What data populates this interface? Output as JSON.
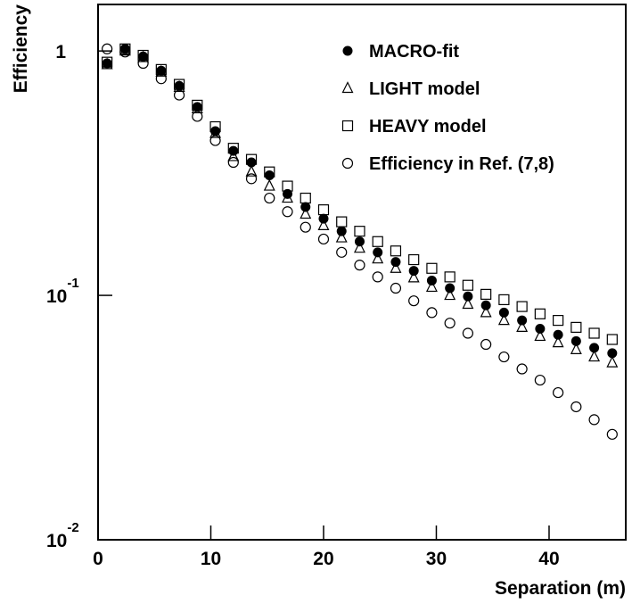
{
  "chart_data": {
    "type": "scatter",
    "log_y": true,
    "x_label": "Separation (m)",
    "y_label": "Efficiency",
    "xlim": [
      0,
      46.8
    ],
    "xticks": [
      0,
      10,
      20,
      30,
      40
    ],
    "ylim": [
      0.01,
      1.55
    ],
    "yticks": [
      {
        "value": 0.01,
        "label": "10",
        "exponent": "-2"
      },
      {
        "value": 0.1,
        "label": "10",
        "exponent": "-1"
      },
      1
    ],
    "x": [
      0.8,
      2.4,
      4.0,
      5.6,
      7.2,
      8.8,
      10.4,
      12.0,
      13.6,
      15.2,
      16.8,
      18.4,
      20.0,
      21.6,
      23.2,
      24.8,
      26.4,
      28.0,
      29.6,
      31.2,
      32.8,
      34.4,
      36.0,
      37.6,
      39.2,
      40.8,
      42.4,
      44.0,
      45.6
    ],
    "series": [
      {
        "name": "MACRO-fit",
        "color": "#000000",
        "marker": "filled-circle",
        "values": [
          0.89,
          1.02,
          0.95,
          0.83,
          0.72,
          0.59,
          0.47,
          0.39,
          0.35,
          0.31,
          0.26,
          0.23,
          0.206,
          0.183,
          0.166,
          0.15,
          0.137,
          0.126,
          0.115,
          0.107,
          0.099,
          0.091,
          0.085,
          0.079,
          0.073,
          0.069,
          0.065,
          0.061,
          0.058
        ]
      },
      {
        "name": "LIGHT model",
        "color": "#000000",
        "marker": "triangle",
        "values": [
          0.88,
          1.0,
          0.94,
          0.82,
          0.71,
          0.58,
          0.46,
          0.37,
          0.32,
          0.28,
          0.25,
          0.215,
          0.193,
          0.172,
          0.156,
          0.141,
          0.129,
          0.118,
          0.108,
          0.1,
          0.092,
          0.085,
          0.079,
          0.074,
          0.068,
          0.064,
          0.06,
          0.056,
          0.053
        ]
      },
      {
        "name": "HEAVY model",
        "color": "#000000",
        "marker": "square",
        "values": [
          0.9,
          1.02,
          0.96,
          0.84,
          0.73,
          0.6,
          0.49,
          0.4,
          0.36,
          0.32,
          0.28,
          0.25,
          0.224,
          0.2,
          0.183,
          0.166,
          0.152,
          0.14,
          0.129,
          0.119,
          0.11,
          0.101,
          0.096,
          0.09,
          0.084,
          0.079,
          0.074,
          0.07,
          0.066
        ]
      },
      {
        "name": "Efficiency in Ref. (7,8)",
        "color": "#000000",
        "marker": "circle",
        "values": [
          1.02,
          0.99,
          0.89,
          0.77,
          0.66,
          0.54,
          0.43,
          0.35,
          0.3,
          0.25,
          0.22,
          0.19,
          0.17,
          0.15,
          0.133,
          0.119,
          0.107,
          0.095,
          0.085,
          0.077,
          0.07,
          0.063,
          0.056,
          0.05,
          0.045,
          0.04,
          0.035,
          0.031,
          0.027
        ]
      }
    ]
  }
}
